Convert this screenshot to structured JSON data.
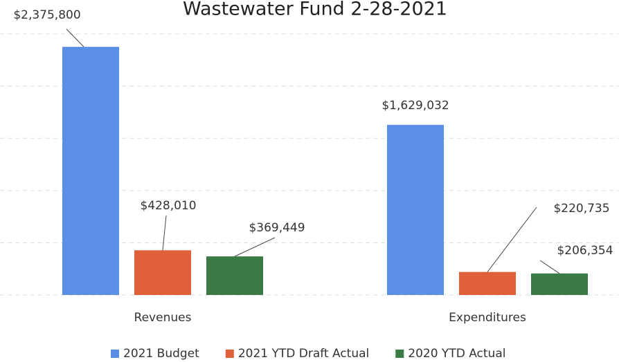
{
  "chart_data": {
    "type": "bar",
    "title": "Wastewater Fund 2-28-2021",
    "categories": [
      "Revenues",
      "Expenditures"
    ],
    "series": [
      {
        "name": "2021 Budget",
        "color": "#5b8ee6",
        "values": [
          2375800,
          1629032
        ],
        "value_labels": [
          "$2,375,800",
          "$1,629,032"
        ]
      },
      {
        "name": "2021 YTD Draft Actual",
        "color": "#e0603a",
        "values": [
          428010,
          220735
        ],
        "value_labels": [
          "$428,010",
          "$220,735"
        ]
      },
      {
        "name": "2020 YTD Actual",
        "color": "#3a7a45",
        "values": [
          369449,
          206354
        ],
        "value_labels": [
          "$369,449",
          "$206,354"
        ]
      }
    ],
    "ylim": [
      0,
      2500000
    ],
    "yticks": [
      0,
      500000,
      1000000,
      1500000,
      2000000,
      2500000
    ],
    "grid": true,
    "legend": "bottom"
  }
}
